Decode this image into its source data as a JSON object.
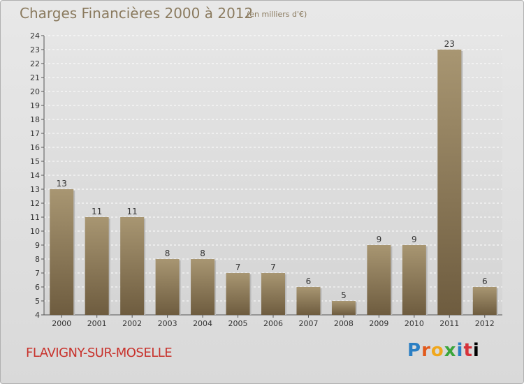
{
  "header": {
    "title": "Charges Financières 2000 à 2012",
    "subtitle": "(en milliers d'€)"
  },
  "footer": {
    "commune": "FLAVIGNY-SUR-MOSELLE",
    "logo_letters": [
      "P",
      "r",
      "o",
      "x",
      "i",
      "t",
      "i"
    ]
  },
  "colors": {
    "bar_top": "#a89672",
    "bar_bottom": "#6e5c3f",
    "commune": "#c8322c"
  },
  "chart_data": {
    "type": "bar",
    "title": "Charges Financières 2000 à 2012",
    "subtitle": "(en milliers d'€)",
    "categories": [
      "2000",
      "2001",
      "2002",
      "2003",
      "2004",
      "2005",
      "2006",
      "2007",
      "2008",
      "2009",
      "2010",
      "2011",
      "2012"
    ],
    "values": [
      13,
      11,
      11,
      8,
      8,
      7,
      7,
      6,
      5,
      9,
      9,
      23,
      6
    ],
    "ylim": [
      4,
      24
    ],
    "yticks": [
      4,
      5,
      6,
      7,
      8,
      9,
      10,
      11,
      12,
      13,
      14,
      15,
      16,
      17,
      18,
      19,
      20,
      21,
      22,
      23,
      24
    ],
    "grid": true,
    "legend": "none"
  }
}
